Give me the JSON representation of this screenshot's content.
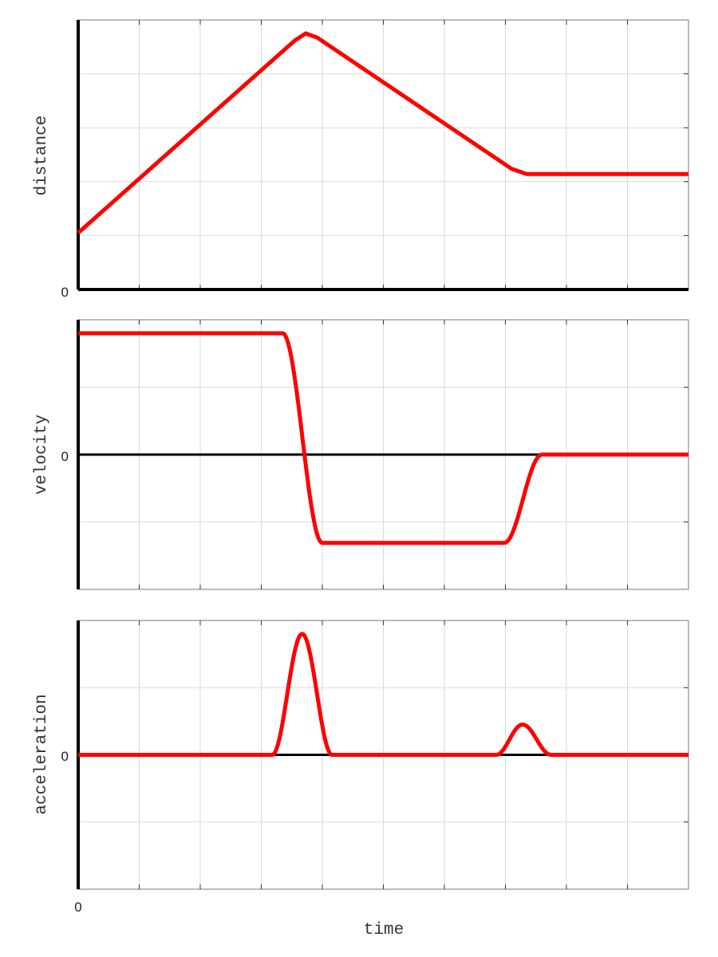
{
  "chart_data": [
    {
      "type": "line",
      "ylabel": "distance",
      "xlabel": "",
      "xlim": [
        0,
        10
      ],
      "ylim": [
        0,
        5
      ],
      "yticklabels": [
        "0"
      ],
      "grid": true,
      "interpolation": "linear",
      "color": "#ff0000",
      "points": [
        [
          0,
          1.05
        ],
        [
          3.55,
          4.62
        ],
        [
          3.73,
          4.75
        ],
        [
          3.92,
          4.67
        ],
        [
          7.1,
          2.24
        ],
        [
          7.35,
          2.14
        ],
        [
          10,
          2.14
        ]
      ]
    },
    {
      "type": "line",
      "ylabel": "velocity",
      "xlabel": "",
      "xlim": [
        0,
        10
      ],
      "ylim": [
        -2,
        2
      ],
      "yticklabels": [
        "0"
      ],
      "grid": true,
      "interpolation": "smooth",
      "color": "#ff0000",
      "points": [
        [
          0,
          1.8
        ],
        [
          3.35,
          1.8
        ],
        [
          4.0,
          -1.31
        ],
        [
          6.98,
          -1.31
        ],
        [
          7.6,
          0
        ],
        [
          10,
          0
        ]
      ]
    },
    {
      "type": "line",
      "ylabel": "acceleration",
      "xlabel": "time",
      "xlim": [
        0,
        10
      ],
      "ylim": [
        -2,
        2
      ],
      "yticklabels": [
        "0"
      ],
      "xticklabels": [
        "0"
      ],
      "grid": true,
      "interpolation": "smooth",
      "color": "#ff0000",
      "points": [
        [
          0,
          0
        ],
        [
          3.18,
          0
        ],
        [
          3.67,
          1.8
        ],
        [
          4.16,
          0
        ],
        [
          6.85,
          0
        ],
        [
          7.28,
          0.45
        ],
        [
          7.75,
          0
        ],
        [
          10,
          0
        ]
      ]
    }
  ]
}
